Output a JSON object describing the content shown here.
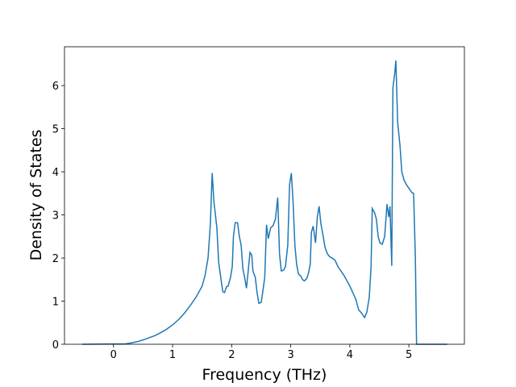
{
  "chart_data": {
    "type": "line",
    "xlabel": "Frequency (THz)",
    "ylabel": "Density of States",
    "x": [
      -0.53,
      0.2,
      0.3,
      0.4,
      0.5,
      0.6,
      0.7,
      0.8,
      0.9,
      1.0,
      1.1,
      1.2,
      1.3,
      1.4,
      1.5,
      1.55,
      1.6,
      1.64,
      1.67,
      1.7,
      1.75,
      1.78,
      1.82,
      1.85,
      1.88,
      1.91,
      1.94,
      1.98,
      2.01,
      2.03,
      2.06,
      2.1,
      2.13,
      2.16,
      2.19,
      2.22,
      2.25,
      2.28,
      2.31,
      2.34,
      2.36,
      2.4,
      2.43,
      2.46,
      2.5,
      2.53,
      2.56,
      2.59,
      2.62,
      2.66,
      2.7,
      2.74,
      2.78,
      2.81,
      2.84,
      2.88,
      2.91,
      2.95,
      2.98,
      3.01,
      3.04,
      3.07,
      3.1,
      3.13,
      3.17,
      3.2,
      3.23,
      3.27,
      3.3,
      3.33,
      3.35,
      3.38,
      3.42,
      3.45,
      3.48,
      3.51,
      3.55,
      3.58,
      3.62,
      3.66,
      3.7,
      3.75,
      3.8,
      3.9,
      4.0,
      4.05,
      4.1,
      4.15,
      4.2,
      4.25,
      4.29,
      4.33,
      4.36,
      4.38,
      4.42,
      4.45,
      4.48,
      4.51,
      4.55,
      4.59,
      4.63,
      4.66,
      4.68,
      4.71,
      4.73,
      4.76,
      4.78,
      4.81,
      4.85,
      4.88,
      4.92,
      4.96,
      5.0,
      5.05,
      5.08,
      5.11,
      5.13,
      5.65
    ],
    "series": [
      {
        "color": "#1f77b4",
        "values": [
          0,
          0.01,
          0.03,
          0.06,
          0.1,
          0.15,
          0.2,
          0.27,
          0.35,
          0.45,
          0.57,
          0.72,
          0.9,
          1.1,
          1.35,
          1.6,
          2.0,
          2.8,
          3.97,
          3.3,
          2.7,
          1.9,
          1.5,
          1.22,
          1.2,
          1.33,
          1.35,
          1.55,
          1.8,
          2.5,
          2.82,
          2.82,
          2.5,
          2.3,
          1.75,
          1.55,
          1.3,
          1.7,
          2.13,
          2.07,
          1.7,
          1.55,
          1.2,
          0.95,
          0.97,
          1.25,
          1.55,
          2.77,
          2.45,
          2.7,
          2.75,
          2.9,
          3.4,
          2.1,
          1.7,
          1.72,
          1.8,
          2.3,
          3.7,
          3.97,
          3.3,
          2.3,
          1.85,
          1.63,
          1.58,
          1.5,
          1.47,
          1.52,
          1.65,
          1.85,
          2.6,
          2.74,
          2.35,
          2.95,
          3.2,
          2.8,
          2.5,
          2.25,
          2.1,
          2.03,
          2.0,
          1.95,
          1.8,
          1.6,
          1.35,
          1.2,
          1.05,
          0.8,
          0.72,
          0.62,
          0.75,
          1.1,
          1.8,
          3.15,
          3.05,
          2.9,
          2.5,
          2.35,
          2.32,
          2.5,
          3.25,
          2.95,
          3.2,
          1.82,
          5.95,
          6.27,
          6.58,
          5.15,
          4.6,
          4.0,
          3.8,
          3.7,
          3.62,
          3.52,
          3.5,
          2.0,
          0,
          0
        ]
      }
    ],
    "xlim": [
      -0.83,
      5.94
    ],
    "ylim": [
      0,
      6.9
    ],
    "xticks": [
      0,
      1,
      2,
      3,
      4,
      5
    ],
    "yticks": [
      0,
      1,
      2,
      3,
      4,
      5,
      6
    ]
  }
}
